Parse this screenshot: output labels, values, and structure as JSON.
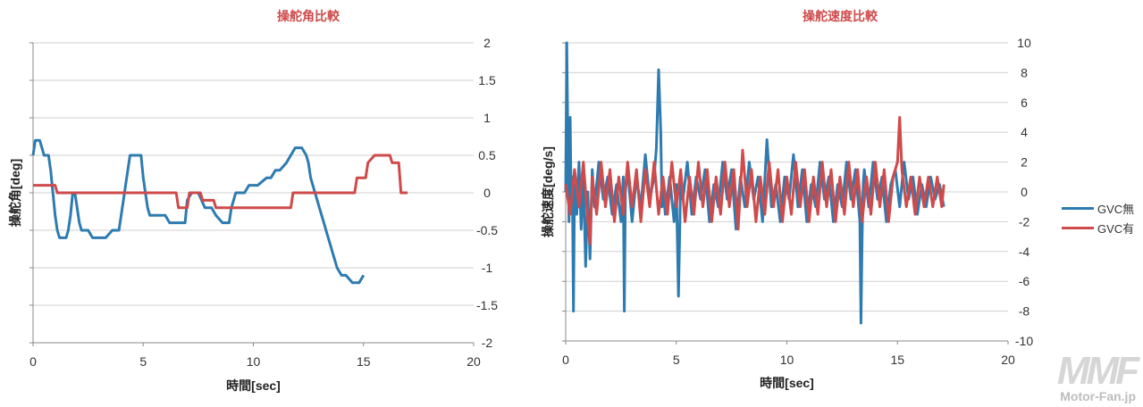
{
  "colors": {
    "gvc_off": "#2e7bb0",
    "gvc_on": "#cf4a4a",
    "title": "#cf4a4a",
    "grid": "#d0d0d0",
    "axis": "#888888",
    "text": "#333333"
  },
  "legend": {
    "items": [
      {
        "label": "GVC無",
        "color": "#2e7bb0"
      },
      {
        "label": "GVC有",
        "color": "#cf4a4a"
      }
    ]
  },
  "watermark": {
    "logo": "MMF",
    "site": "Motor-Fan.jp"
  },
  "chart_data": [
    {
      "type": "line",
      "title": "操舵角比較",
      "xlabel": "時間[sec]",
      "ylabel": "操舵角[deg]",
      "xlim": [
        0,
        20
      ],
      "ylim": [
        -2,
        2
      ],
      "xticks": [
        "0",
        "5",
        "10",
        "15",
        "20"
      ],
      "yticks": [
        "2",
        "1.5",
        "1",
        "0.5",
        "0",
        "-0.5",
        "-1",
        "-1.5",
        "-2"
      ],
      "grid": true,
      "series": [
        {
          "name": "GVC無",
          "x": [
            0,
            0.1,
            0.2,
            0.3,
            0.4,
            0.5,
            0.6,
            0.7,
            0.8,
            0.9,
            1.0,
            1.1,
            1.2,
            1.3,
            1.5,
            1.6,
            1.7,
            1.8,
            1.9,
            2.0,
            2.1,
            2.2,
            2.5,
            2.7,
            2.8,
            2.9,
            3.1,
            3.3,
            3.6,
            3.9,
            4.0,
            4.1,
            4.2,
            4.3,
            4.4,
            4.5,
            4.9,
            5.0,
            5.1,
            5.2,
            5.3,
            5.5,
            5.9,
            6.0,
            6.2,
            6.5,
            6.9,
            7.0,
            7.2,
            7.5,
            7.8,
            8.0,
            8.1,
            8.3,
            8.6,
            8.9,
            9.0,
            9.2,
            9.6,
            9.8,
            10.0,
            10.2,
            10.6,
            10.8,
            11.0,
            11.2,
            11.5,
            11.7,
            11.9,
            12.0,
            12.2,
            12.4,
            12.5,
            12.6,
            12.8,
            12.9,
            13.0,
            13.1,
            13.2,
            13.3,
            13.4,
            13.5,
            13.6,
            13.7,
            13.8,
            14.0,
            14.2,
            14.5,
            14.8,
            15.0
          ],
          "values": [
            0.5,
            0.7,
            0.7,
            0.7,
            0.6,
            0.5,
            0.5,
            0.5,
            0.3,
            0.0,
            -0.3,
            -0.5,
            -0.6,
            -0.6,
            -0.6,
            -0.5,
            -0.3,
            0.0,
            0.0,
            -0.2,
            -0.4,
            -0.5,
            -0.5,
            -0.6,
            -0.6,
            -0.6,
            -0.6,
            -0.6,
            -0.5,
            -0.5,
            -0.3,
            -0.1,
            0.1,
            0.3,
            0.5,
            0.5,
            0.5,
            0.2,
            0.0,
            -0.2,
            -0.3,
            -0.3,
            -0.3,
            -0.3,
            -0.4,
            -0.4,
            -0.4,
            -0.1,
            0.0,
            0.0,
            -0.2,
            -0.2,
            -0.2,
            -0.3,
            -0.4,
            -0.4,
            -0.2,
            0.0,
            0.0,
            0.1,
            0.1,
            0.1,
            0.2,
            0.2,
            0.3,
            0.3,
            0.4,
            0.5,
            0.6,
            0.6,
            0.6,
            0.5,
            0.4,
            0.2,
            0.0,
            -0.1,
            -0.2,
            -0.3,
            -0.4,
            -0.5,
            -0.6,
            -0.7,
            -0.8,
            -0.9,
            -1.0,
            -1.1,
            -1.1,
            -1.2,
            -1.2,
            -1.1
          ]
        },
        {
          "name": "GVC有",
          "x": [
            0,
            1.0,
            1.1,
            6.5,
            6.6,
            7.0,
            7.1,
            7.6,
            7.7,
            8.2,
            8.3,
            11.7,
            11.8,
            14.6,
            14.7,
            15.1,
            15.2,
            15.5,
            16.2,
            16.3,
            16.6,
            16.7,
            17.0
          ],
          "values": [
            0.1,
            0.1,
            0.0,
            0.0,
            -0.2,
            -0.2,
            0.0,
            0.0,
            -0.1,
            -0.1,
            -0.2,
            -0.2,
            0.0,
            0.0,
            0.2,
            0.2,
            0.4,
            0.5,
            0.5,
            0.4,
            0.4,
            0.0,
            0.0
          ]
        }
      ]
    },
    {
      "type": "line",
      "title": "操舵速度比較",
      "xlabel": "時間[sec]",
      "ylabel": "操舵速度[deg/s]",
      "xlim": [
        0,
        20
      ],
      "ylim": [
        -10,
        10
      ],
      "xticks": [
        "0",
        "5",
        "10",
        "15",
        "20"
      ],
      "yticks": [
        "10",
        "8",
        "6",
        "4",
        "2",
        "0",
        "-2",
        "-4",
        "-6",
        "-8",
        "-10"
      ],
      "grid": true,
      "series": [
        {
          "name": "GVC無",
          "x": [
            0.0,
            0.05,
            0.1,
            0.15,
            0.2,
            0.25,
            0.3,
            0.35,
            0.4,
            0.5,
            0.6,
            0.7,
            0.8,
            0.9,
            1.0,
            1.1,
            1.2,
            1.3,
            1.5,
            1.7,
            1.9,
            2.1,
            2.3,
            2.5,
            2.6,
            2.65,
            2.7,
            2.8,
            3.0,
            3.2,
            3.4,
            3.6,
            3.8,
            4.0,
            4.1,
            4.2,
            4.3,
            4.35,
            4.4,
            4.5,
            4.7,
            4.9,
            5.0,
            5.1,
            5.15,
            5.2,
            5.3,
            5.5,
            5.7,
            5.9,
            6.1,
            6.3,
            6.5,
            6.7,
            6.9,
            7.1,
            7.3,
            7.5,
            7.7,
            7.9,
            8.1,
            8.3,
            8.5,
            8.7,
            8.9,
            9.1,
            9.3,
            9.5,
            9.7,
            9.9,
            10.1,
            10.3,
            10.5,
            10.7,
            10.9,
            11.1,
            11.3,
            11.5,
            11.7,
            11.9,
            12.1,
            12.3,
            12.5,
            12.7,
            12.9,
            13.1,
            13.3,
            13.35,
            13.4,
            13.45,
            13.5,
            13.7,
            13.9,
            14.1,
            14.3,
            14.5,
            14.7,
            14.9,
            15.1,
            15.3,
            15.5,
            15.7,
            15.9,
            16.1,
            16.3,
            16.5,
            16.7,
            16.9,
            17.1
          ],
          "values": [
            0.0,
            10.0,
            3.0,
            -2.0,
            5.0,
            -1.0,
            1.0,
            -8.0,
            0.5,
            -1.5,
            2.0,
            -2.5,
            1.0,
            -5.0,
            0.0,
            -4.5,
            1.5,
            -1.0,
            2.0,
            -0.5,
            1.0,
            -1.5,
            0.5,
            -2.0,
            1.0,
            -8.0,
            0.0,
            1.5,
            -2.0,
            1.0,
            -1.0,
            2.5,
            -0.5,
            1.0,
            3.0,
            8.2,
            4.0,
            -1.0,
            0.5,
            -1.5,
            1.0,
            -2.0,
            0.5,
            -7.0,
            -3.0,
            1.0,
            -0.5,
            2.0,
            -1.5,
            1.0,
            -0.5,
            1.5,
            -2.0,
            0.5,
            -1.0,
            2.0,
            -0.5,
            1.5,
            -2.5,
            1.0,
            -1.0,
            2.0,
            -0.5,
            1.0,
            -2.0,
            3.5,
            -1.0,
            0.5,
            -2.0,
            1.0,
            -0.5,
            2.5,
            -1.0,
            1.5,
            -2.0,
            0.5,
            -1.0,
            2.0,
            -0.5,
            1.0,
            -2.0,
            0.5,
            -1.0,
            2.0,
            -0.5,
            1.5,
            -2.0,
            -8.8,
            -3.0,
            0.5,
            1.5,
            -1.0,
            2.0,
            -0.5,
            1.0,
            -2.0,
            0.5,
            1.5,
            -1.0,
            2.0,
            -0.5,
            1.0,
            -1.5,
            0.5,
            -1.0,
            1.0,
            -0.5,
            0.5,
            -1.0
          ]
        },
        {
          "name": "GVC有",
          "x": [
            0.0,
            0.2,
            0.4,
            0.6,
            0.8,
            1.0,
            1.1,
            1.2,
            1.4,
            1.6,
            1.8,
            2.0,
            2.2,
            2.4,
            2.6,
            2.8,
            3.0,
            3.2,
            3.4,
            3.6,
            3.8,
            4.0,
            4.2,
            4.4,
            4.6,
            4.8,
            5.0,
            5.2,
            5.4,
            5.6,
            5.8,
            6.0,
            6.2,
            6.4,
            6.6,
            6.8,
            7.0,
            7.2,
            7.4,
            7.6,
            7.8,
            8.0,
            8.2,
            8.4,
            8.6,
            8.8,
            9.0,
            9.2,
            9.4,
            9.6,
            9.8,
            10.0,
            10.2,
            10.4,
            10.6,
            10.8,
            11.0,
            11.2,
            11.4,
            11.6,
            11.8,
            12.0,
            12.2,
            12.4,
            12.6,
            12.8,
            13.0,
            13.2,
            13.4,
            13.6,
            13.8,
            14.0,
            14.2,
            14.4,
            14.6,
            14.8,
            15.0,
            15.1,
            15.2,
            15.4,
            15.6,
            15.8,
            16.0,
            16.2,
            16.4,
            16.6,
            16.8,
            17.0,
            17.1
          ],
          "values": [
            0.5,
            -1.5,
            1.5,
            -1.0,
            2.0,
            -2.0,
            -3.5,
            1.0,
            -1.5,
            2.0,
            -1.0,
            1.5,
            -2.0,
            1.0,
            -1.5,
            2.0,
            -1.0,
            1.5,
            -2.0,
            1.5,
            -1.0,
            2.0,
            -1.5,
            1.0,
            -1.5,
            2.0,
            -1.0,
            1.5,
            -2.0,
            1.0,
            -1.5,
            2.0,
            -1.0,
            1.5,
            -2.0,
            1.0,
            -1.5,
            2.0,
            -1.0,
            1.5,
            -2.5,
            2.8,
            -1.0,
            1.5,
            -2.0,
            1.0,
            -1.5,
            2.0,
            -1.0,
            1.5,
            -2.0,
            1.0,
            -1.5,
            2.0,
            -1.0,
            1.5,
            -2.0,
            1.0,
            -1.5,
            2.0,
            -1.0,
            1.5,
            -2.0,
            1.0,
            -1.5,
            2.0,
            -1.0,
            1.5,
            -2.0,
            1.0,
            -1.5,
            2.0,
            -1.0,
            1.5,
            -2.0,
            1.0,
            2.0,
            5.0,
            1.5,
            -1.0,
            1.0,
            -1.5,
            1.0,
            -1.0,
            1.0,
            -1.0,
            1.0,
            -1.0,
            0.5
          ]
        }
      ]
    }
  ]
}
